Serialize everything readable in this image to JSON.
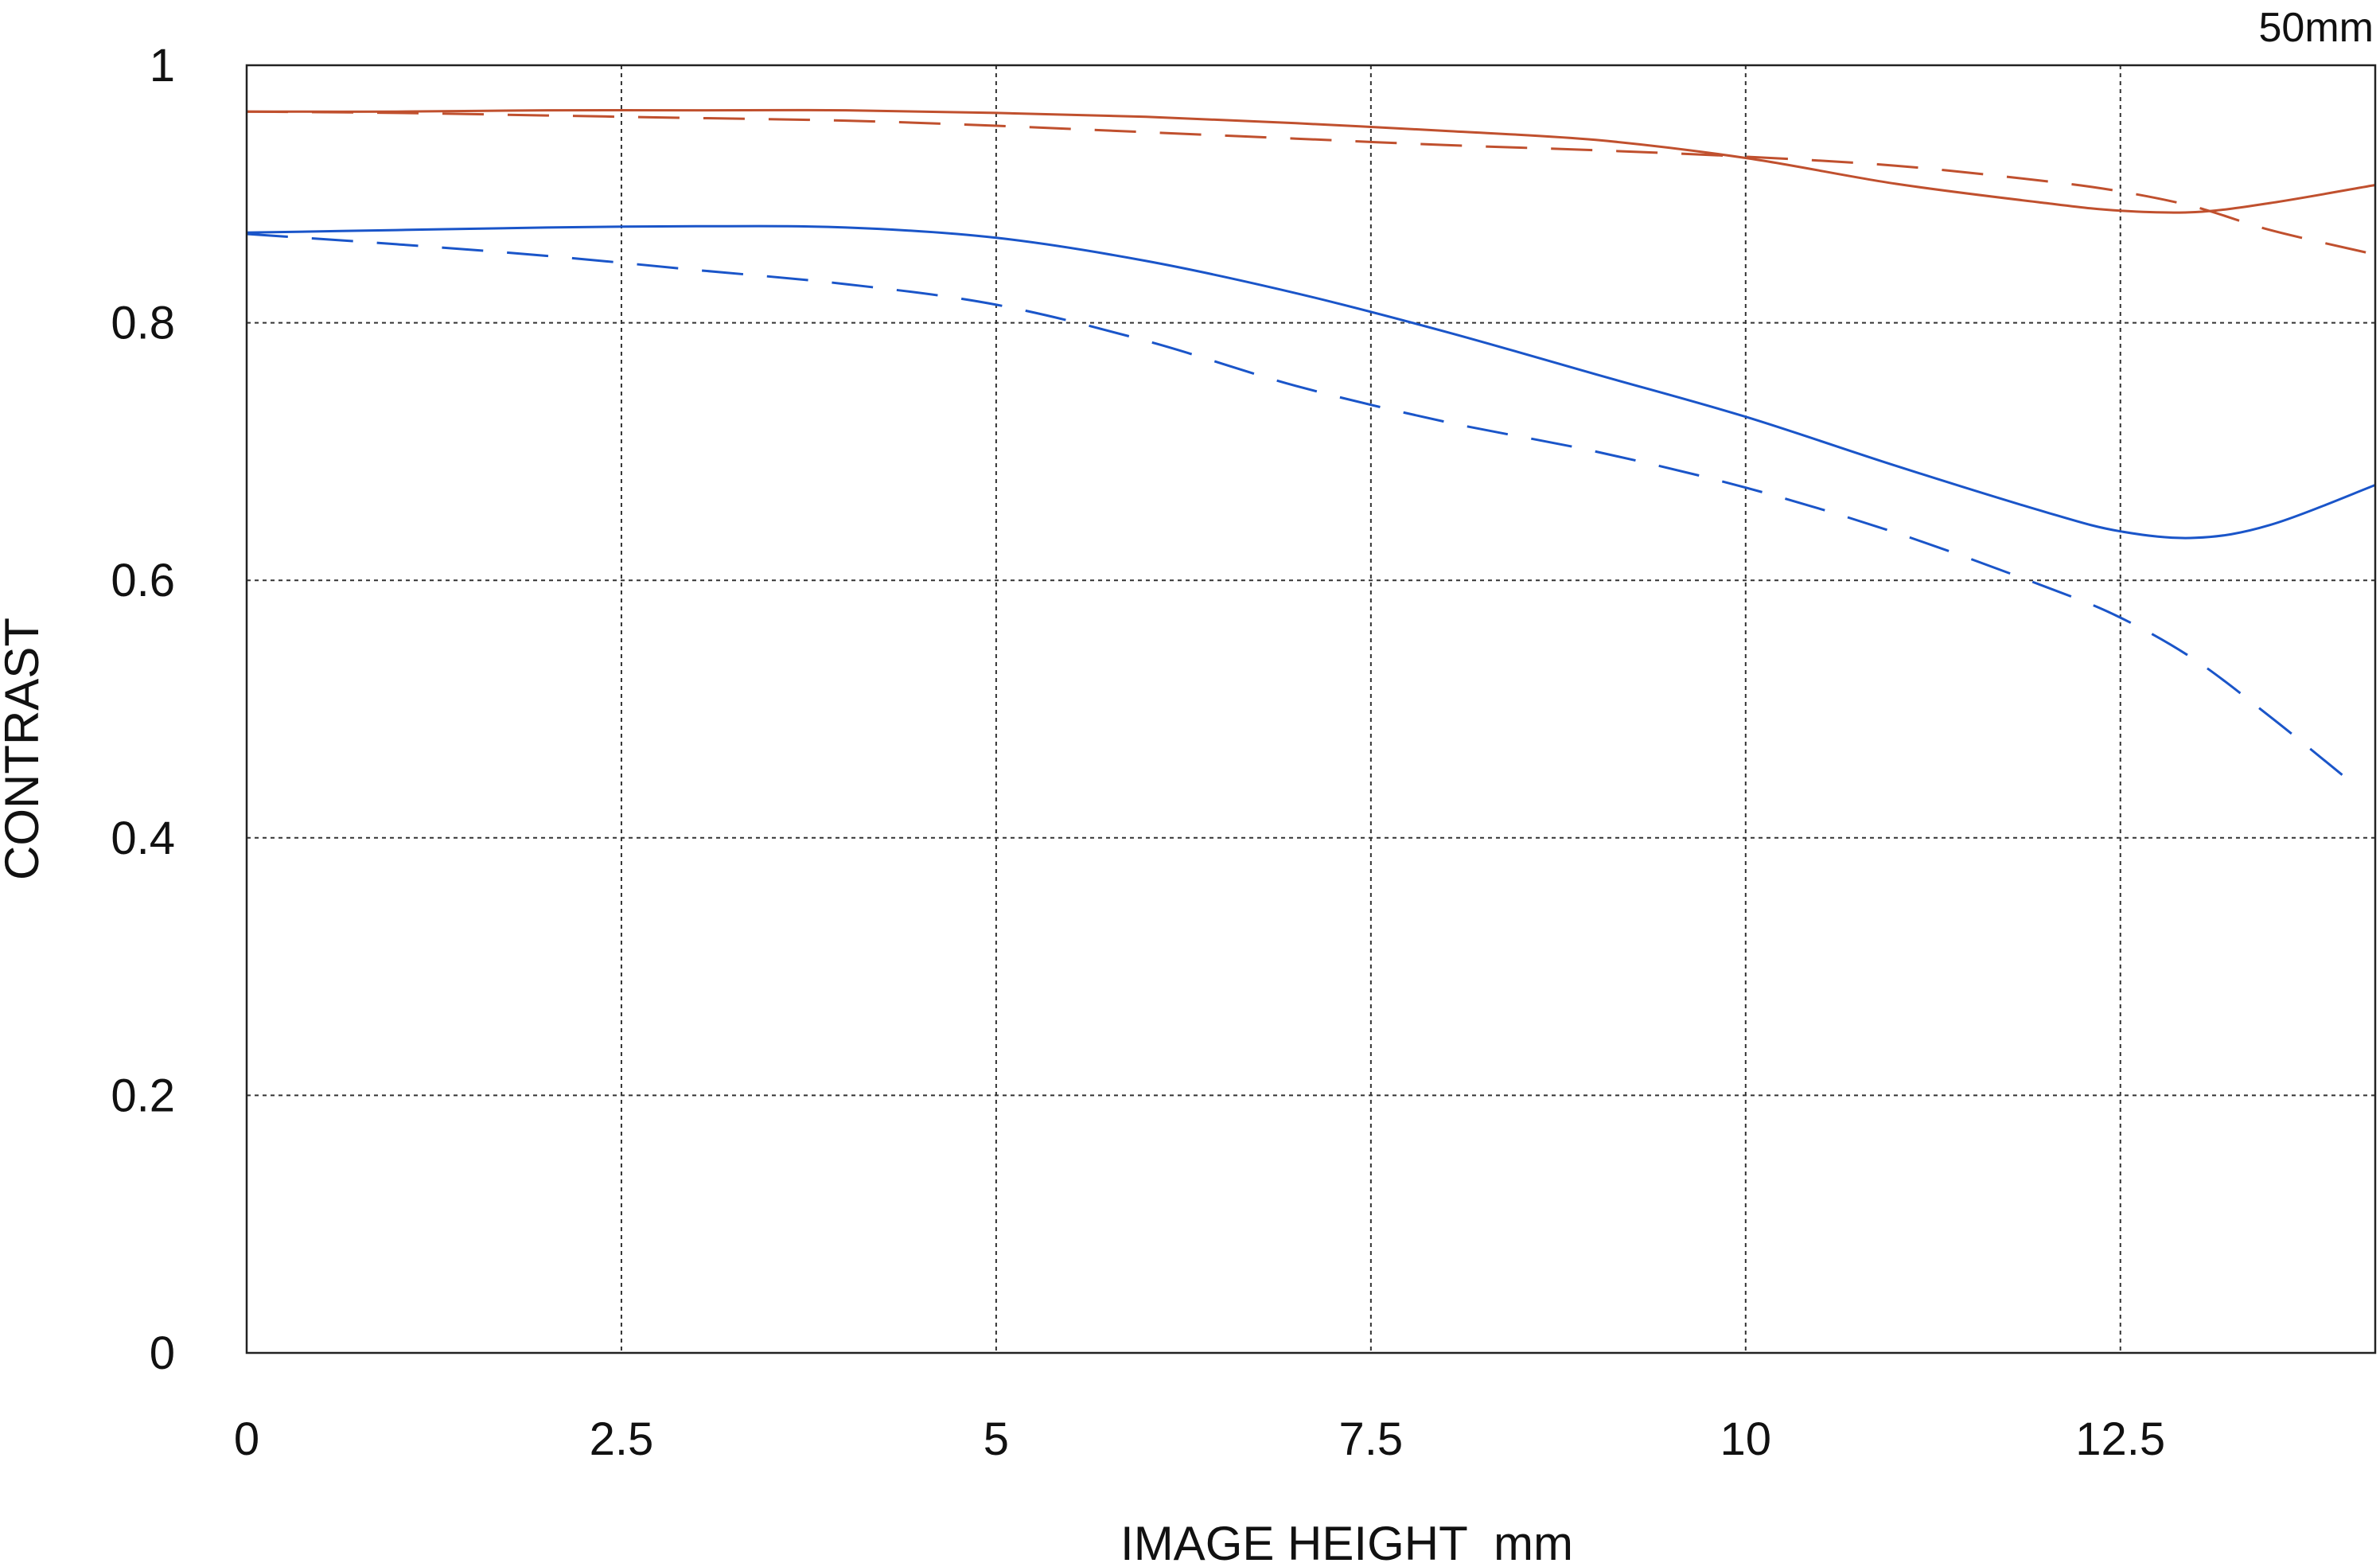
{
  "chart_data": {
    "type": "line",
    "title": "",
    "corner_label": "50mm",
    "xlabel": "IMAGE HEIGHT  mm",
    "ylabel": "CONTRAST",
    "xlim": [
      0,
      14.2
    ],
    "ylim": [
      0,
      1
    ],
    "grid": true,
    "x_ticks": [
      0,
      2.5,
      5,
      7.5,
      10,
      12.5
    ],
    "x_tick_labels": [
      "0",
      "2.5",
      "5",
      "7.5",
      "10",
      "12.5"
    ],
    "y_ticks": [
      0,
      0.2,
      0.4,
      0.6,
      0.8,
      1
    ],
    "y_tick_labels": [
      "0",
      "0.2",
      "0.4",
      "0.6",
      "0.8",
      "1"
    ],
    "series": [
      {
        "color": "#c0502e",
        "dash": "solid",
        "x": [
          0,
          1,
          2,
          3,
          4,
          5,
          6,
          7,
          8,
          9,
          10,
          11,
          12,
          12.5,
          13,
          13.5,
          14.2
        ],
        "y": [
          0.964,
          0.964,
          0.965,
          0.965,
          0.965,
          0.963,
          0.96,
          0.955,
          0.949,
          0.942,
          0.928,
          0.908,
          0.893,
          0.887,
          0.886,
          0.893,
          0.907
        ]
      },
      {
        "color": "#c0502e",
        "dash": "dashed",
        "x": [
          0,
          1,
          2,
          3,
          4,
          5,
          6,
          7,
          8,
          9,
          10,
          11,
          12,
          12.5,
          13,
          13.5,
          14.2
        ],
        "y": [
          0.964,
          0.963,
          0.961,
          0.959,
          0.957,
          0.953,
          0.948,
          0.943,
          0.938,
          0.934,
          0.929,
          0.922,
          0.91,
          0.902,
          0.89,
          0.872,
          0.853
        ]
      },
      {
        "color": "#1a55c9",
        "dash": "solid",
        "x": [
          0,
          1,
          2,
          3,
          4,
          5,
          6,
          7,
          8,
          9,
          10,
          11,
          12,
          12.5,
          13,
          13.5,
          14.2
        ],
        "y": [
          0.87,
          0.872,
          0.874,
          0.875,
          0.874,
          0.866,
          0.848,
          0.823,
          0.793,
          0.76,
          0.727,
          0.689,
          0.653,
          0.638,
          0.633,
          0.643,
          0.674
        ]
      },
      {
        "color": "#1a55c9",
        "dash": "dashed",
        "x": [
          0,
          1,
          2,
          3,
          4,
          5,
          6,
          7,
          8,
          9,
          10,
          11,
          12,
          12.5,
          13,
          13.5,
          14.0
        ],
        "y": [
          0.869,
          0.861,
          0.852,
          0.841,
          0.83,
          0.814,
          0.786,
          0.751,
          0.723,
          0.7,
          0.672,
          0.637,
          0.595,
          0.571,
          0.538,
          0.494,
          0.447
        ]
      }
    ]
  }
}
